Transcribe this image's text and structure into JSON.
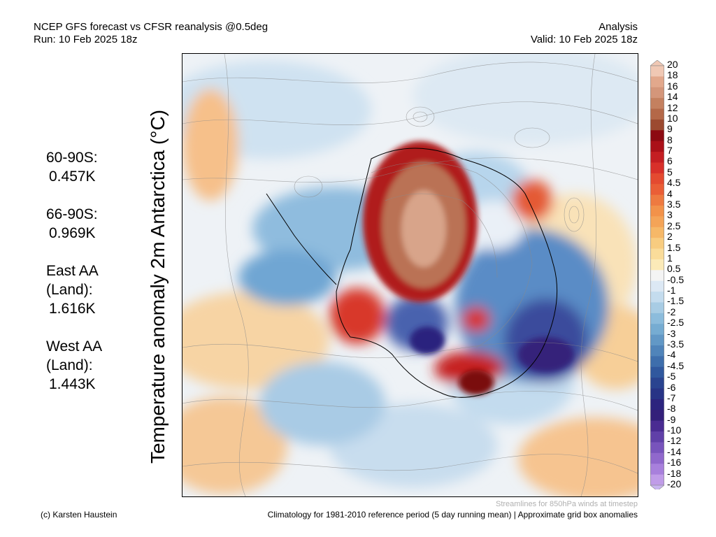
{
  "header": {
    "title_line1": "NCEP GFS forecast vs CFSR reanalysis @0.5deg",
    "title_line2": "Run: 10 Feb 2025 18z",
    "right_line1": "Analysis",
    "right_line2": "Valid: 10 Feb 2025 18z"
  },
  "y_label": "Temperature anomaly 2m Antarctica (°C)",
  "stats": [
    {
      "label_lines": [
        "60-90S:"
      ],
      "value": "0.457K"
    },
    {
      "label_lines": [
        "66-90S:"
      ],
      "value": "0.969K"
    },
    {
      "label_lines": [
        "East AA",
        "(Land):"
      ],
      "value": "1.616K"
    },
    {
      "label_lines": [
        "West AA",
        "(Land):"
      ],
      "value": "1.443K"
    }
  ],
  "colorbar": {
    "labels": [
      "20",
      "18",
      "16",
      "14",
      "12",
      "10",
      "9",
      "8",
      "7",
      "6",
      "5",
      "4.5",
      "4",
      "3.5",
      "3",
      "2.5",
      "2",
      "1.5",
      "1",
      "0.5",
      "-0.5",
      "-1",
      "-1.5",
      "-2",
      "-2.5",
      "-3",
      "-3.5",
      "-4",
      "-4.5",
      "-5",
      "-6",
      "-7",
      "-8",
      "-9",
      "-10",
      "-12",
      "-14",
      "-16",
      "-18",
      "-20"
    ],
    "colors": [
      "#f0c8b4",
      "#e2a88c",
      "#d4967a",
      "#c4805f",
      "#b46848",
      "#9c4a30",
      "#8c0a12",
      "#aa1018",
      "#c41e22",
      "#d8302a",
      "#e44a30",
      "#ea5e36",
      "#ee7a40",
      "#f2924a",
      "#f4a458",
      "#f6b868",
      "#f8cc80",
      "#fadc9a",
      "#fbeab8",
      "#f4f4f4",
      "#dce8f4",
      "#c4dcee",
      "#a8cce4",
      "#8cbcdc",
      "#76acd2",
      "#6298c6",
      "#5084ba",
      "#3e6eac",
      "#30589e",
      "#2a4490",
      "#283486",
      "#2c247e",
      "#34207a",
      "#4a2c92",
      "#6040a8",
      "#7854bc",
      "#9068cc",
      "#a880dc",
      "#c09ce8"
    ],
    "top_arrow_color": "#f0c8b4",
    "bottom_arrow_color": "#c8b4f0"
  },
  "footer": {
    "streamlines_note": "Streamlines for 850hPa winds at timestep",
    "credit": "(c) Karsten Haustein",
    "climatology": "Climatology for 1981-2010 reference period (5 day running mean) | Approximate grid box anomalies"
  }
}
